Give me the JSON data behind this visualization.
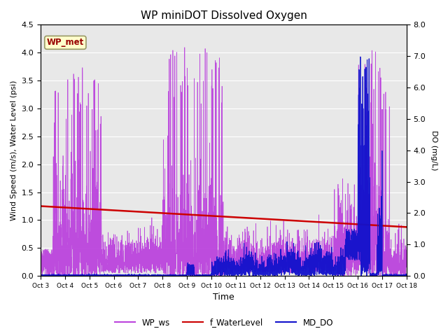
{
  "title": "WP miniDOT Dissolved Oxygen",
  "xlabel": "Time",
  "ylabel_left": "Wind Speed (m/s), Water Level (psi)",
  "ylabel_right": "DO (mg/L)",
  "annotation_text": "WP_met",
  "annotation_box_color": "#ffffcc",
  "annotation_text_color": "#990000",
  "annotation_border_color": "#999966",
  "xlim": [
    0,
    15
  ],
  "ylim_left": [
    0,
    4.5
  ],
  "ylim_right": [
    0,
    8.0
  ],
  "yticks_left": [
    0.0,
    0.5,
    1.0,
    1.5,
    2.0,
    2.5,
    3.0,
    3.5,
    4.0,
    4.5
  ],
  "yticks_right": [
    0.0,
    1.0,
    2.0,
    3.0,
    4.0,
    5.0,
    6.0,
    7.0,
    8.0
  ],
  "xtick_labels": [
    "Oct 3",
    "Oct 4",
    "Oct 5",
    "Oct 6",
    "Oct 7",
    "Oct 8",
    "Oct 9",
    "Oct 10",
    "Oct 11",
    "Oct 12",
    "Oct 13",
    "Oct 14",
    "Oct 15",
    "Oct 16",
    "Oct 17",
    "Oct 18"
  ],
  "bg_color": "#e8e8e8",
  "legend_labels": [
    "WP_ws",
    "f_WaterLevel",
    "MD_DO"
  ],
  "legend_colors": [
    "#bb44dd",
    "#cc0000",
    "#1111cc"
  ],
  "line_ws_color": "#bb44dd",
  "line_wl_color": "#cc0000",
  "line_do_color": "#1111cc",
  "fig_width": 6.4,
  "fig_height": 4.8,
  "dpi": 100
}
